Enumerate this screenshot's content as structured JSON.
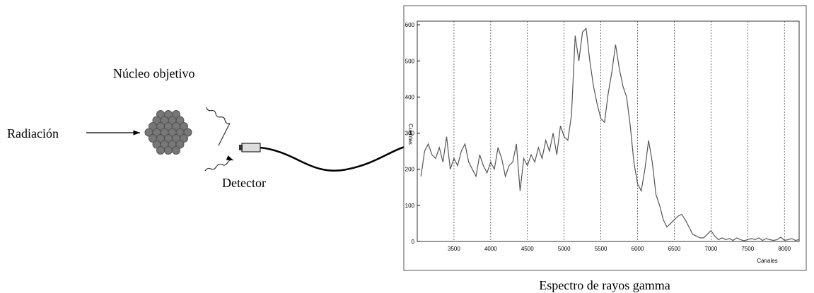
{
  "labels": {
    "nucleus": "Núcleo objetivo",
    "radiation": "Radiación",
    "detector": "Detector",
    "caption": "Espectro de rayos gamma"
  },
  "chart_data": {
    "type": "line",
    "xlabel": "Canales",
    "ylabel": "Cuentas",
    "xlim": [
      3000,
      8200
    ],
    "ylim": [
      0,
      610
    ],
    "xticks": [
      3500,
      4000,
      4500,
      5000,
      5500,
      6000,
      6500,
      7000,
      7500,
      8000
    ],
    "yticks": [
      0,
      100,
      200,
      300,
      400,
      500,
      600
    ],
    "grid": true,
    "series": [
      {
        "color": "#555555",
        "x": [
          3050,
          3100,
          3150,
          3200,
          3250,
          3300,
          3350,
          3400,
          3450,
          3500,
          3550,
          3600,
          3650,
          3700,
          3750,
          3800,
          3850,
          3900,
          3950,
          4000,
          4050,
          4100,
          4150,
          4200,
          4250,
          4300,
          4350,
          4400,
          4450,
          4500,
          4550,
          4600,
          4650,
          4700,
          4750,
          4800,
          4850,
          4900,
          4950,
          5000,
          5050,
          5100,
          5150,
          5200,
          5250,
          5300,
          5350,
          5400,
          5450,
          5500,
          5550,
          5600,
          5650,
          5700,
          5750,
          5800,
          5850,
          5900,
          5950,
          6000,
          6050,
          6100,
          6150,
          6200,
          6250,
          6300,
          6350,
          6400,
          6450,
          6500,
          6550,
          6600,
          6650,
          6700,
          6750,
          6800,
          6850,
          6900,
          6950,
          7000,
          7050,
          7100,
          7150,
          7200,
          7250,
          7300,
          7350,
          7400,
          7450,
          7500,
          7550,
          7600,
          7650,
          7700,
          7750,
          7800,
          7850,
          7900,
          7950,
          8000,
          8050,
          8100,
          8150,
          8200
        ],
        "values": [
          180,
          250,
          270,
          240,
          230,
          260,
          220,
          290,
          200,
          230,
          210,
          250,
          270,
          220,
          200,
          180,
          240,
          210,
          190,
          220,
          200,
          260,
          230,
          180,
          210,
          220,
          270,
          140,
          230,
          210,
          240,
          220,
          260,
          230,
          280,
          250,
          300,
          240,
          320,
          290,
          280,
          350,
          570,
          500,
          580,
          590,
          500,
          430,
          380,
          340,
          330,
          410,
          470,
          545,
          480,
          430,
          400,
          320,
          220,
          160,
          140,
          200,
          280,
          220,
          130,
          100,
          60,
          40,
          50,
          60,
          70,
          75,
          60,
          40,
          20,
          15,
          10,
          10,
          20,
          30,
          15,
          5,
          10,
          5,
          8,
          3,
          10,
          5,
          2,
          5,
          8,
          5,
          10,
          3,
          8,
          5,
          3,
          5,
          12,
          3,
          5,
          8,
          3,
          5
        ]
      }
    ]
  }
}
